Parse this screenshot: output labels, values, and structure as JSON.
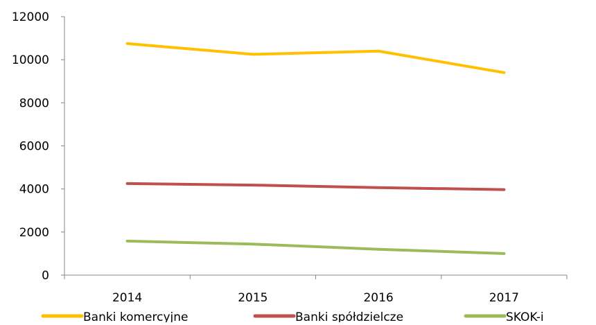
{
  "chart_data": {
    "type": "line",
    "title": "",
    "xlabel": "",
    "ylabel": "",
    "categories": [
      "2014",
      "2015",
      "2016",
      "2017"
    ],
    "ylim": [
      0,
      12000
    ],
    "yticks": [
      0,
      2000,
      4000,
      6000,
      8000,
      10000,
      12000
    ],
    "ytick_labels": [
      "0",
      "2000",
      "4000",
      "6000",
      "8000",
      "10000",
      "12000"
    ],
    "grid": false,
    "legend_position": "bottom",
    "series": [
      {
        "name": "Banki komercyjne",
        "color": "#FFC000",
        "values": [
          10750,
          10250,
          10400,
          9400
        ]
      },
      {
        "name": "Banki spółdzielcze",
        "color": "#C0504D",
        "values": [
          4250,
          4180,
          4060,
          3970
        ]
      },
      {
        "name": "SKOK-i",
        "color": "#9BBB59",
        "values": [
          1580,
          1440,
          1200,
          1000
        ]
      }
    ]
  }
}
